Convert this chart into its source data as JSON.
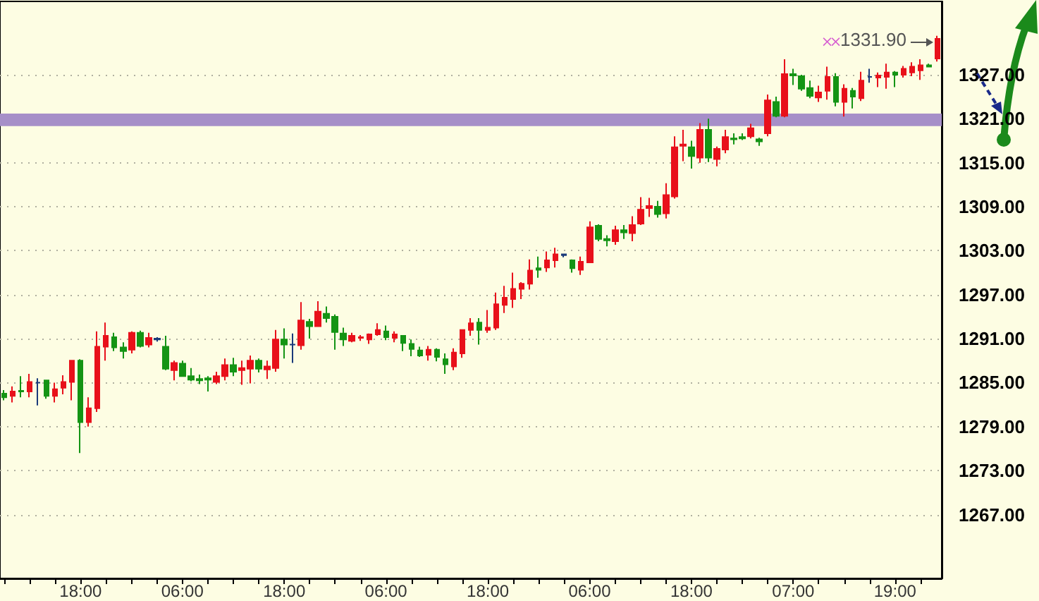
{
  "chart_data": {
    "type": "candlestick",
    "categories": [
      null,
      null,
      null,
      null,
      null,
      null,
      null,
      null,
      null,
      "18:00",
      null,
      null,
      null,
      null,
      null,
      null,
      null,
      null,
      null,
      null,
      null,
      "06:00",
      null,
      null,
      null,
      null,
      null,
      null,
      null,
      null,
      null,
      null,
      null,
      "18:00",
      null,
      null,
      null,
      null,
      null,
      null,
      null,
      null,
      null,
      null,
      null,
      "06:00",
      null,
      null,
      null,
      null,
      null,
      null,
      null,
      null,
      null,
      null,
      null,
      "18:00",
      null,
      null,
      null,
      null,
      null,
      null,
      null,
      null,
      null,
      null,
      null,
      "06:00",
      null,
      null,
      null,
      null,
      null,
      null,
      null,
      null,
      null,
      null,
      null,
      "18:00",
      null,
      null,
      null,
      null,
      null,
      null,
      null,
      null,
      null,
      null,
      null,
      "07:00",
      null,
      null,
      null,
      null,
      null,
      null,
      null,
      null,
      null,
      null,
      null,
      "19:00",
      null,
      null,
      null,
      null,
      null
    ],
    "ohlc": [
      [
        1283.5,
        1284.0,
        1282.6,
        1283.0
      ],
      [
        1283.2,
        1284.5,
        1282.3,
        1283.8
      ],
      [
        1283.9,
        1285.9,
        1283.0,
        1283.8
      ],
      [
        1283.8,
        1286.2,
        1283.0,
        1285.1
      ],
      [
        1285.0,
        1285.6,
        1281.9,
        1285.0
      ],
      [
        1285.3,
        1285.4,
        1282.8,
        1283.2
      ],
      [
        1283.2,
        1285.0,
        1282.3,
        1284.1
      ],
      [
        1284.3,
        1286.0,
        1283.4,
        1285.1
      ],
      [
        1285.1,
        1288.1,
        1282.6,
        1288.0
      ],
      [
        1288.0,
        1288.2,
        1275.4,
        1279.6
      ],
      [
        1279.6,
        1283.0,
        1279.0,
        1281.5
      ],
      [
        1281.5,
        1292.0,
        1281.0,
        1289.9
      ],
      [
        1289.9,
        1293.2,
        1288.0,
        1291.4
      ],
      [
        1291.2,
        1291.8,
        1289.3,
        1289.8
      ],
      [
        1289.8,
        1290.5,
        1288.3,
        1289.3
      ],
      [
        1289.5,
        1292.0,
        1289.0,
        1291.8
      ],
      [
        1291.8,
        1292.1,
        1289.8,
        1290.0
      ],
      [
        1290.2,
        1291.8,
        1289.8,
        1291.1
      ],
      [
        1290.9,
        1291.2,
        1290.6,
        1291.0
      ],
      [
        1289.9,
        1291.4,
        1286.7,
        1286.9
      ],
      [
        1286.7,
        1288.0,
        1285.3,
        1287.7
      ],
      [
        1287.6,
        1288.0,
        1285.8,
        1285.9
      ],
      [
        1285.9,
        1287.0,
        1285.2,
        1285.4
      ],
      [
        1285.5,
        1286.1,
        1284.8,
        1285.3
      ],
      [
        1285.6,
        1285.9,
        1283.8,
        1285.4
      ],
      [
        1285.1,
        1286.5,
        1284.8,
        1285.9
      ],
      [
        1285.9,
        1288.3,
        1285.3,
        1287.4
      ],
      [
        1287.4,
        1288.4,
        1285.9,
        1286.5
      ],
      [
        1286.7,
        1288.0,
        1284.7,
        1287.0
      ],
      [
        1286.9,
        1288.7,
        1284.9,
        1288.0
      ],
      [
        1288.0,
        1288.3,
        1286.4,
        1286.9
      ],
      [
        1286.8,
        1288.0,
        1285.5,
        1287.2
      ],
      [
        1287.0,
        1292.2,
        1286.5,
        1290.9
      ],
      [
        1290.9,
        1292.4,
        1288.3,
        1290.2
      ],
      [
        1290.2,
        1291.7,
        1287.7,
        1290.2
      ],
      [
        1290.1,
        1296.0,
        1289.5,
        1293.5
      ],
      [
        1293.3,
        1293.7,
        1291.0,
        1292.7
      ],
      [
        1292.7,
        1296.1,
        1292.6,
        1294.7
      ],
      [
        1294.4,
        1295.4,
        1293.2,
        1293.8
      ],
      [
        1294.0,
        1294.3,
        1289.5,
        1291.9
      ],
      [
        1291.7,
        1292.5,
        1290.0,
        1290.9
      ],
      [
        1290.7,
        1291.8,
        1290.5,
        1291.4
      ],
      [
        1291.1,
        1291.5,
        1290.7,
        1291.2
      ],
      [
        1290.9,
        1291.7,
        1290.3,
        1291.6
      ],
      [
        1291.6,
        1293.1,
        1291.4,
        1292.2
      ],
      [
        1292.0,
        1292.8,
        1290.8,
        1291.2
      ],
      [
        1291.1,
        1292.0,
        1290.5,
        1291.6
      ],
      [
        1291.4,
        1291.5,
        1289.3,
        1290.4
      ],
      [
        1290.3,
        1290.9,
        1288.6,
        1289.6
      ],
      [
        1289.4,
        1289.9,
        1288.5,
        1288.7
      ],
      [
        1288.8,
        1290.0,
        1288.0,
        1289.5
      ],
      [
        1289.5,
        1289.7,
        1287.9,
        1288.5
      ],
      [
        1288.2,
        1289.0,
        1286.2,
        1287.5
      ],
      [
        1287.2,
        1289.7,
        1286.7,
        1289.1
      ],
      [
        1289.0,
        1292.2,
        1288.4,
        1292.2
      ],
      [
        1292.2,
        1293.8,
        1291.4,
        1293.1
      ],
      [
        1293.2,
        1293.8,
        1290.2,
        1292.2
      ],
      [
        1292.2,
        1294.9,
        1291.8,
        1292.5
      ],
      [
        1292.5,
        1297.3,
        1292.2,
        1295.7
      ],
      [
        1295.6,
        1298.2,
        1294.5,
        1296.6
      ],
      [
        1296.4,
        1300.0,
        1295.2,
        1297.8
      ],
      [
        1297.8,
        1298.7,
        1296.4,
        1298.5
      ],
      [
        1298.5,
        1301.8,
        1297.7,
        1300.3
      ],
      [
        1300.6,
        1302.2,
        1299.3,
        1300.4
      ],
      [
        1300.7,
        1302.9,
        1300.1,
        1301.7
      ],
      [
        1301.7,
        1303.4,
        1300.7,
        1302.5
      ],
      [
        1302.4,
        1302.6,
        1302.1,
        1302.5
      ],
      [
        1301.7,
        1301.8,
        1300.0,
        1300.6
      ],
      [
        1300.4,
        1302.2,
        1299.7,
        1301.5
      ],
      [
        1301.4,
        1307.0,
        1301.4,
        1306.2
      ],
      [
        1306.4,
        1306.6,
        1304.3,
        1304.6
      ],
      [
        1304.6,
        1305.1,
        1303.6,
        1304.4
      ],
      [
        1304.3,
        1306.4,
        1303.8,
        1305.8
      ],
      [
        1305.8,
        1306.5,
        1304.6,
        1305.5
      ],
      [
        1305.4,
        1307.7,
        1304.3,
        1306.5
      ],
      [
        1306.7,
        1310.3,
        1306.5,
        1308.6
      ],
      [
        1308.8,
        1310.2,
        1307.6,
        1309.1
      ],
      [
        1309.0,
        1309.8,
        1307.5,
        1308.0
      ],
      [
        1308.1,
        1312.2,
        1307.4,
        1310.6
      ],
      [
        1310.4,
        1318.6,
        1310.1,
        1317.1
      ],
      [
        1317.3,
        1319.5,
        1315.2,
        1317.5
      ],
      [
        1317.1,
        1318.0,
        1314.2,
        1315.9
      ],
      [
        1315.7,
        1320.4,
        1315.0,
        1319.5
      ],
      [
        1319.5,
        1321.0,
        1315.1,
        1315.7
      ],
      [
        1315.5,
        1317.2,
        1314.5,
        1316.9
      ],
      [
        1316.8,
        1319.5,
        1316.3,
        1318.5
      ],
      [
        1318.3,
        1319.0,
        1317.5,
        1318.2
      ],
      [
        1318.5,
        1319.0,
        1318.1,
        1318.3
      ],
      [
        1318.6,
        1320.3,
        1318.3,
        1319.7
      ],
      [
        1318.2,
        1318.4,
        1317.3,
        1317.9
      ],
      [
        1319.0,
        1324.3,
        1318.6,
        1323.5
      ],
      [
        1323.3,
        1324.0,
        1321.2,
        1321.4
      ],
      [
        1321.4,
        1329.1,
        1321.2,
        1327.1
      ],
      [
        1327.1,
        1327.8,
        1325.6,
        1326.9
      ],
      [
        1326.8,
        1327.0,
        1324.8,
        1325.1
      ],
      [
        1325.2,
        1326.2,
        1323.8,
        1324.1
      ],
      [
        1323.9,
        1325.5,
        1323.3,
        1324.6
      ],
      [
        1324.8,
        1328.1,
        1323.6,
        1326.7
      ],
      [
        1326.7,
        1327.2,
        1322.7,
        1323.3
      ],
      [
        1323.3,
        1325.7,
        1321.3,
        1325.1
      ],
      [
        1324.8,
        1325.2,
        1322.4,
        1324.0
      ],
      [
        1323.8,
        1327.4,
        1323.4,
        1326.2
      ],
      [
        1326.7,
        1327.8,
        1325.9,
        1326.7
      ],
      [
        1326.6,
        1327.3,
        1325.3,
        1326.9
      ],
      [
        1326.7,
        1328.5,
        1325.1,
        1327.3
      ],
      [
        1327.3,
        1327.5,
        1325.3,
        1327.0
      ],
      [
        1327.0,
        1328.2,
        1326.6,
        1327.8
      ],
      [
        1327.3,
        1328.7,
        1326.8,
        1328.1
      ],
      [
        1327.6,
        1329.1,
        1326.3,
        1328.3
      ],
      [
        1328.3,
        1328.5,
        1328.0,
        1328.1
      ],
      [
        1329.2,
        1332.3,
        1328.8,
        1331.9
      ]
    ],
    "colors": [
      "#149414",
      "#e8101a",
      "#149414",
      "#e8101a",
      "#1a3a7a",
      "#149414",
      "#e8101a",
      "#e8101a",
      "#e8101a",
      "#149414",
      "#e8101a",
      "#e8101a",
      "#e8101a",
      "#149414",
      "#149414",
      "#e8101a",
      "#149414",
      "#e8101a",
      "#1a3a7a",
      "#149414",
      "#e8101a",
      "#149414",
      "#149414",
      "#149414",
      "#149414",
      "#e8101a",
      "#e8101a",
      "#149414",
      "#e8101a",
      "#e8101a",
      "#149414",
      "#e8101a",
      "#e8101a",
      "#149414",
      "#1a3a7a",
      "#e8101a",
      "#149414",
      "#e8101a",
      "#149414",
      "#149414",
      "#149414",
      "#e8101a",
      "#e8101a",
      "#e8101a",
      "#e8101a",
      "#149414",
      "#e8101a",
      "#149414",
      "#149414",
      "#149414",
      "#e8101a",
      "#149414",
      "#149414",
      "#e8101a",
      "#e8101a",
      "#e8101a",
      "#149414",
      "#e8101a",
      "#e8101a",
      "#e8101a",
      "#e8101a",
      "#e8101a",
      "#e8101a",
      "#149414",
      "#e8101a",
      "#e8101a",
      "#1a3a7a",
      "#149414",
      "#e8101a",
      "#e8101a",
      "#149414",
      "#149414",
      "#e8101a",
      "#149414",
      "#e8101a",
      "#e8101a",
      "#e8101a",
      "#149414",
      "#e8101a",
      "#e8101a",
      "#e8101a",
      "#149414",
      "#e8101a",
      "#149414",
      "#e8101a",
      "#e8101a",
      "#149414",
      "#149414",
      "#e8101a",
      "#149414",
      "#e8101a",
      "#149414",
      "#e8101a",
      "#149414",
      "#149414",
      "#149414",
      "#e8101a",
      "#e8101a",
      "#149414",
      "#e8101a",
      "#149414",
      "#e8101a",
      "#1a3a7a",
      "#e8101a",
      "#e8101a",
      "#149414",
      "#e8101a",
      "#e8101a",
      "#e8101a",
      "#149414",
      "#e8101a"
    ],
    "series": [
      {
        "type": "scatter",
        "color": "#cc33cc",
        "marker": "cross",
        "values": [
          null,
          null,
          null,
          null,
          null,
          null,
          null,
          null,
          null,
          null,
          null,
          null,
          null,
          null,
          null,
          null,
          null,
          null,
          null,
          null,
          null,
          null,
          null,
          null,
          null,
          null,
          null,
          null,
          null,
          null,
          null,
          null,
          null,
          null,
          null,
          null,
          null,
          null,
          null,
          null,
          null,
          null,
          null,
          null,
          null,
          null,
          null,
          null,
          null,
          null,
          null,
          null,
          null,
          null,
          null,
          null,
          null,
          null,
          null,
          null,
          null,
          null,
          null,
          null,
          null,
          null,
          null,
          null,
          null,
          null,
          null,
          null,
          null,
          null,
          null,
          null,
          null,
          null,
          null,
          null,
          null,
          null,
          null,
          null,
          null,
          null,
          null,
          null,
          null,
          null,
          null,
          null,
          null,
          null,
          null,
          null,
          null,
          1331.5,
          1331.5,
          null,
          null,
          null,
          null,
          null,
          null,
          null,
          null,
          null,
          null,
          null,
          null
        ]
      }
    ],
    "ylim": [
      1258.3,
      1337
    ],
    "yticks": [
      {
        "value": 1267,
        "label": "1267.00"
      },
      {
        "value": 1273,
        "label": "1273.00"
      },
      {
        "value": 1279,
        "label": "1279.00"
      },
      {
        "value": 1285,
        "label": "1285.00"
      },
      {
        "value": 1291,
        "label": "1291.00"
      },
      {
        "value": 1297,
        "label": "1297.00"
      },
      {
        "value": 1303,
        "label": "1303.00"
      },
      {
        "value": 1309,
        "label": "1309.00"
      },
      {
        "value": 1315,
        "label": "1315.00"
      },
      {
        "value": 1321,
        "label": "1321.00"
      },
      {
        "value": 1327,
        "label": "1327.00"
      }
    ],
    "grid": "y",
    "bands": [
      {
        "axis": "y",
        "from": 1320.0,
        "to": 1321.7,
        "color": "#a68fc8"
      }
    ],
    "annotations": [
      "1331.90"
    ]
  }
}
